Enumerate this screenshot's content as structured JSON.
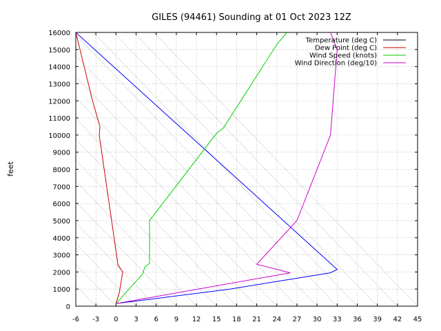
{
  "chart_data": {
    "type": "line",
    "title": "GILES (94461) Sounding at 01 Oct 2023 12Z",
    "ylabel": "feet",
    "xlabel": "",
    "xlim": [
      -6,
      45
    ],
    "ylim": [
      0,
      16000
    ],
    "x_ticks": [
      -6,
      -3,
      0,
      3,
      6,
      9,
      12,
      15,
      18,
      21,
      24,
      27,
      30,
      33,
      36,
      39,
      42,
      45
    ],
    "y_ticks": [
      0,
      1000,
      2000,
      3000,
      4000,
      5000,
      6000,
      7000,
      8000,
      9000,
      10000,
      11000,
      12000,
      13000,
      14000,
      15000,
      16000
    ],
    "grid": true,
    "skewed_isotherms": true,
    "legend_position": "top-right",
    "series": [
      {
        "name": "Temperature (deg C)",
        "color": "#0000ff",
        "legend_color": "#000000",
        "points": [
          [
            0,
            150
          ],
          [
            17,
            1000
          ],
          [
            32,
            1950
          ],
          [
            33,
            2150
          ],
          [
            -6,
            16000
          ]
        ]
      },
      {
        "name": "Dew Point (deg C)",
        "color": "#cc0000",
        "points": [
          [
            0,
            150
          ],
          [
            0.5,
            800
          ],
          [
            1,
            2000
          ],
          [
            0.3,
            2400
          ],
          [
            -2.5,
            10000
          ],
          [
            -2.4,
            10500
          ],
          [
            -3.5,
            12000
          ],
          [
            -6,
            16000
          ]
        ]
      },
      {
        "name": "Wind Speed (knots)",
        "color": "#00cc00",
        "points": [
          [
            0,
            150
          ],
          [
            4,
            1900
          ],
          [
            4.3,
            2300
          ],
          [
            5,
            2500
          ],
          [
            5,
            5000
          ],
          [
            15,
            10100
          ],
          [
            16,
            10400
          ],
          [
            24,
            15300
          ],
          [
            25.5,
            16000
          ]
        ]
      },
      {
        "name": "Wind Direction (deg/10)",
        "color": "#cc00cc",
        "points": [
          [
            0,
            150
          ],
          [
            26,
            1950
          ],
          [
            21,
            2450
          ],
          [
            27,
            5000
          ],
          [
            32,
            10000
          ],
          [
            33,
            15000
          ],
          [
            32,
            16000
          ]
        ]
      }
    ]
  }
}
